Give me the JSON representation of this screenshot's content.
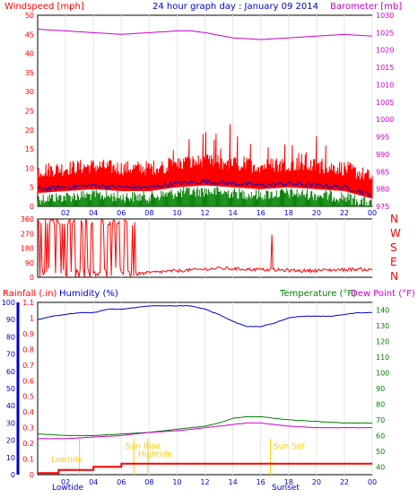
{
  "header": {
    "left_label": "Windspeed [mph]",
    "title": "24 hour graph day : January 09 2014",
    "right_label": "Barometer [mb]"
  },
  "colors": {
    "wind_avg": "#0000c8",
    "wind_gust": "#ff0000",
    "wind_calm": "#008000",
    "barometer": "#cc00cc",
    "direction": "#ff0000",
    "rain": "#ff0000",
    "humidity": "#0000c8",
    "temperature": "#008000",
    "dewpoint": "#cc00cc",
    "sun_marker": "#ffcc00"
  },
  "hour_ticks": [
    "02",
    "04",
    "06",
    "08",
    "10",
    "12",
    "14",
    "16",
    "18",
    "20",
    "22",
    "00"
  ],
  "lower_labels": {
    "rain": "Rainfall (.in)",
    "humidity": "Humidity (%)",
    "temperature": "Temperature (°F)",
    "dewpoint": "Dew Point (°F)"
  },
  "compass": [
    "N",
    "W",
    "S",
    "E",
    "N"
  ],
  "events": {
    "lowtide": "Lowtide",
    "sunrise": "Sun Rise",
    "hightide": "Hightide",
    "sunset": "Sun Set",
    "bottom_lowtide": "Lowtide",
    "bottom_sunset": "Sunset"
  },
  "chart_data": [
    {
      "type": "line",
      "name": "wind_barometer",
      "x_unit": "hour",
      "x_ticks": [
        "02",
        "04",
        "06",
        "08",
        "10",
        "12",
        "14",
        "16",
        "18",
        "20",
        "22",
        "00"
      ],
      "wind_ylim": [
        0,
        50
      ],
      "wind_yticks": [
        0,
        5,
        10,
        15,
        20,
        25,
        30,
        35,
        40,
        45,
        50
      ],
      "baro_ylim": [
        975,
        1030
      ],
      "baro_yticks": [
        975,
        980,
        985,
        990,
        995,
        1000,
        1005,
        1010,
        1015,
        1020,
        1025,
        1030
      ],
      "barometer": {
        "x": [
          0,
          2,
          4,
          6,
          8,
          10,
          11,
          12,
          14,
          16,
          18,
          20,
          22,
          24
        ],
        "y": [
          1026,
          1025.5,
          1025,
          1024.5,
          1025,
          1025.5,
          1025.5,
          1025,
          1023.5,
          1023,
          1023.5,
          1024,
          1024.5,
          1024
        ]
      },
      "wind_avg": {
        "x": [
          0,
          2,
          4,
          6,
          8,
          10,
          12,
          14,
          16,
          18,
          20,
          22,
          24
        ],
        "y": [
          4.5,
          5,
          5.5,
          5,
          5,
          6,
          6.5,
          6,
          5.5,
          6,
          5.5,
          5,
          3
        ]
      },
      "wind_gust_typical": 10,
      "wind_gust_max": 21.5,
      "wind_gust_max_hour": 13.8
    },
    {
      "type": "line",
      "name": "wind_direction",
      "x_ticks": [
        "02",
        "04",
        "06",
        "08",
        "10",
        "12",
        "14",
        "16",
        "18",
        "20",
        "22",
        "00"
      ],
      "ylim": [
        0,
        360
      ],
      "yticks": [
        0,
        90,
        180,
        270,
        360
      ],
      "typical_direction": {
        "x": [
          7,
          9,
          11,
          13,
          15,
          17,
          19,
          21,
          23,
          24
        ],
        "y": [
          20,
          35,
          45,
          55,
          50,
          45,
          40,
          45,
          50,
          45
        ]
      }
    },
    {
      "type": "line",
      "name": "rain_humidity_temperature",
      "x_ticks": [
        "02",
        "04",
        "06",
        "08",
        "10",
        "12",
        "14",
        "16",
        "18",
        "20",
        "22",
        "00"
      ],
      "humidity_ylim": [
        0,
        100
      ],
      "humidity_yticks": [
        0,
        10,
        20,
        30,
        40,
        50,
        60,
        70,
        80,
        90,
        100
      ],
      "rain_ylim": [
        0,
        1.1
      ],
      "rain_yticks": [
        0,
        0.1,
        0.2,
        0.3,
        0.4,
        0.5,
        0.6,
        0.7,
        0.8,
        0.9,
        1,
        1.1
      ],
      "temp_ylim": [
        35,
        145
      ],
      "temp_yticks": [
        40,
        50,
        60,
        70,
        80,
        90,
        100,
        110,
        120,
        130,
        140
      ],
      "humidity": {
        "x": [
          0,
          1,
          2,
          3,
          4,
          5,
          6,
          7,
          8,
          9,
          10,
          11,
          12,
          13,
          14,
          15,
          16,
          17,
          18,
          19,
          20,
          21,
          22,
          23,
          24
        ],
        "y": [
          90,
          92,
          93,
          94,
          94,
          96,
          96,
          97,
          98,
          98,
          98,
          98,
          96,
          93,
          89,
          86,
          86,
          88,
          91,
          92,
          92,
          92,
          93,
          94,
          94
        ]
      },
      "rain": {
        "x": [
          0,
          1.5,
          1.5,
          4,
          4,
          6,
          6,
          24
        ],
        "y": [
          0.01,
          0.01,
          0.03,
          0.03,
          0.05,
          0.05,
          0.07,
          0.07
        ]
      },
      "temperature": {
        "x": [
          0,
          2,
          4,
          6,
          8,
          10,
          12,
          13,
          14,
          15,
          16,
          17,
          18,
          20,
          22,
          24
        ],
        "y": [
          61,
          60,
          60,
          61,
          62,
          64,
          66,
          68,
          71,
          72,
          72,
          71,
          70,
          69,
          68,
          68
        ]
      },
      "dewpoint": {
        "x": [
          0,
          2,
          4,
          6,
          8,
          10,
          12,
          14,
          15,
          16,
          17,
          18,
          20,
          22,
          24
        ],
        "y": [
          58,
          58,
          59,
          60,
          62,
          63,
          65,
          67,
          68,
          68,
          67,
          66,
          65,
          65,
          65
        ]
      }
    }
  ]
}
